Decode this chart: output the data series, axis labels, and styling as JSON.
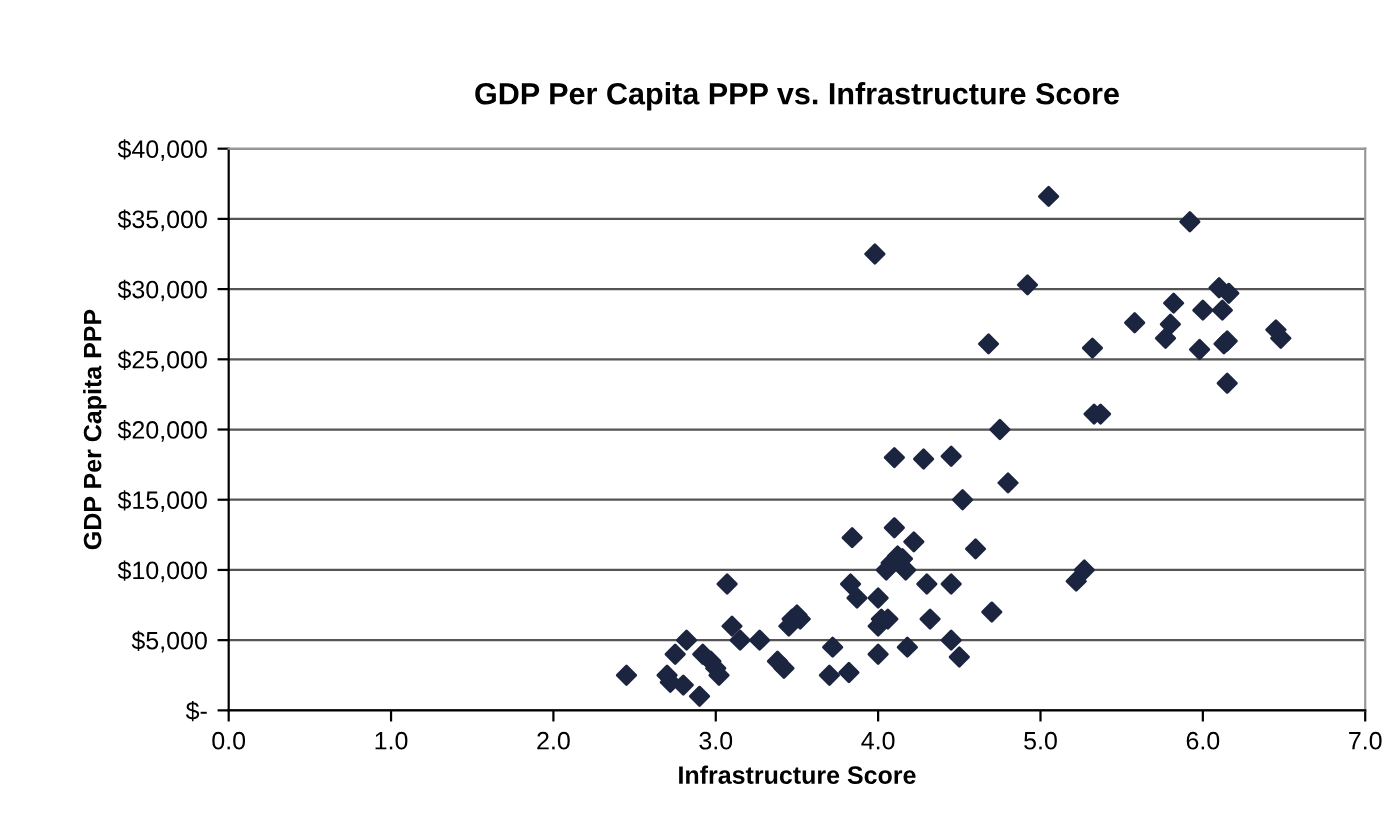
{
  "chart_data": {
    "type": "scatter",
    "title": "GDP Per Capita PPP vs. Infrastructure Score",
    "xlabel": "Infrastructure Score",
    "ylabel": "GDP Per Capita PPP",
    "x": [
      2.45,
      2.7,
      2.72,
      2.75,
      2.8,
      2.82,
      2.9,
      2.92,
      2.97,
      3.0,
      3.02,
      3.07,
      3.1,
      3.15,
      3.27,
      3.38,
      3.42,
      3.45,
      3.47,
      3.5,
      3.52,
      3.7,
      3.72,
      3.82,
      3.83,
      3.84,
      3.87,
      3.98,
      4.0,
      4.0,
      4.0,
      4.02,
      4.05,
      4.06,
      4.08,
      4.1,
      4.1,
      4.12,
      4.15,
      4.17,
      4.18,
      4.22,
      4.28,
      4.3,
      4.32,
      4.45,
      4.45,
      4.45,
      4.5,
      4.52,
      4.6,
      4.68,
      4.7,
      4.75,
      4.8,
      4.92,
      5.05,
      5.22,
      5.27,
      5.32,
      5.33,
      5.37,
      5.58,
      5.77,
      5.8,
      5.82,
      5.92,
      5.98,
      6.0,
      6.1,
      6.12,
      6.13,
      6.15,
      6.16,
      6.15,
      6.45,
      6.48
    ],
    "series": [
      {
        "color": "#1c2540",
        "values": [
          2500,
          2500,
          2000,
          4000,
          1800,
          5000,
          1000,
          4000,
          3500,
          3000,
          2500,
          9000,
          6000,
          5000,
          5000,
          3500,
          3000,
          6000,
          6500,
          6800,
          6500,
          2500,
          4500,
          2700,
          9000,
          12300,
          8000,
          32500,
          8000,
          6000,
          4000,
          6500,
          10000,
          6500,
          10500,
          18000,
          13000,
          11000,
          10800,
          10000,
          4500,
          12000,
          17900,
          9000,
          6500,
          18100,
          9000,
          5000,
          3800,
          15000,
          11500,
          26100,
          7000,
          20000,
          16200,
          30300,
          36600,
          9200,
          10000,
          25800,
          21100,
          21100,
          27600,
          26500,
          27500,
          29000,
          34800,
          25700,
          28500,
          30100,
          28500,
          26100,
          26300,
          29700,
          23300,
          27100,
          26500
        ]
      }
    ],
    "xlim": [
      0,
      7
    ],
    "xticks": [
      {
        "value": 0,
        "label": "0.0"
      },
      {
        "value": 1,
        "label": "1.0"
      },
      {
        "value": 2,
        "label": "2.0"
      },
      {
        "value": 3,
        "label": "3.0"
      },
      {
        "value": 4,
        "label": "4.0"
      },
      {
        "value": 5,
        "label": "5.0"
      },
      {
        "value": 6,
        "label": "6.0"
      },
      {
        "value": 7,
        "label": "7.0"
      }
    ],
    "ylim": [
      0,
      40000
    ],
    "yticks": [
      {
        "value": 0,
        "label": "$-"
      },
      {
        "value": 5000,
        "label": "$5,000"
      },
      {
        "value": 10000,
        "label": "$10,000"
      },
      {
        "value": 15000,
        "label": "$15,000"
      },
      {
        "value": 20000,
        "label": "$20,000"
      },
      {
        "value": 25000,
        "label": "$25,000"
      },
      {
        "value": 30000,
        "label": "$30,000"
      },
      {
        "value": 35000,
        "label": "$35,000"
      },
      {
        "value": 40000,
        "label": "$40,000"
      }
    ],
    "grid": "y",
    "marker": "diamond",
    "legend": false
  }
}
